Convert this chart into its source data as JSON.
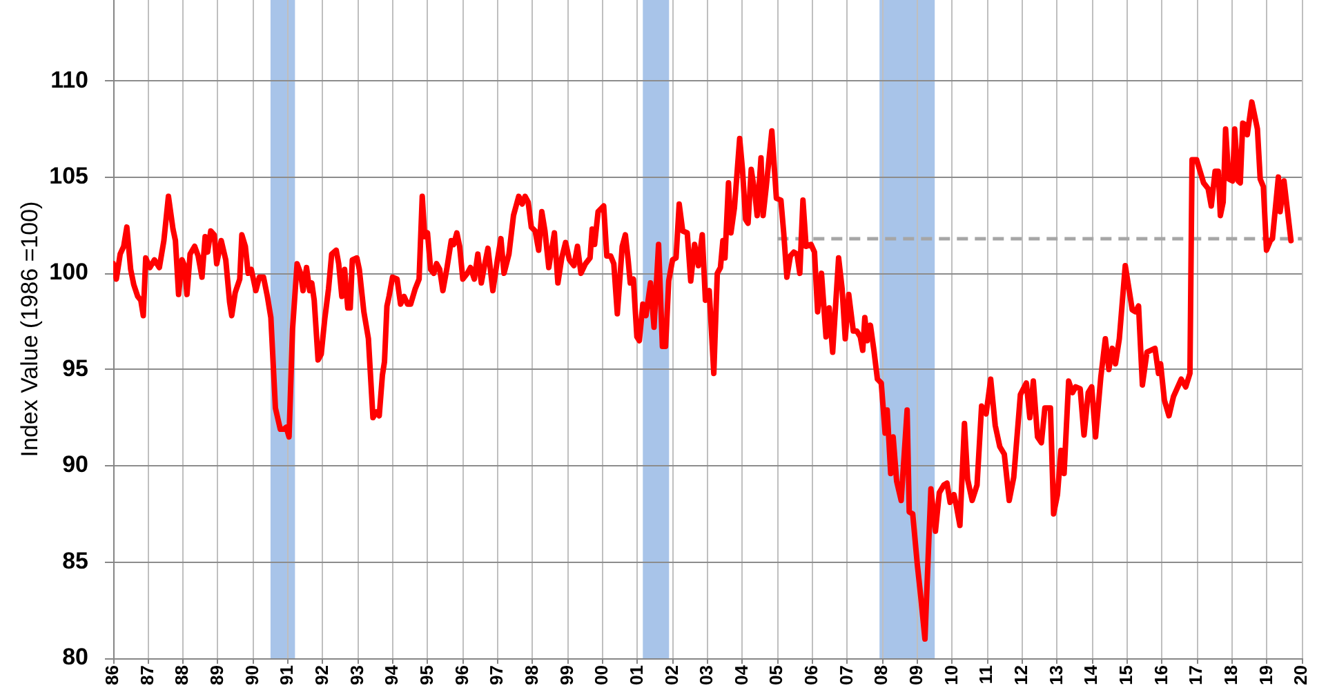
{
  "chart_data": {
    "type": "line",
    "ylabel": "Index Value (1986 =100)",
    "xlim": [
      1986,
      2020
    ],
    "xticks": [
      {
        "value": 1986,
        "label": "86"
      },
      {
        "value": 1987,
        "label": "87"
      },
      {
        "value": 1988,
        "label": "88"
      },
      {
        "value": 1989,
        "label": "89"
      },
      {
        "value": 1990,
        "label": "90"
      },
      {
        "value": 1991,
        "label": "91"
      },
      {
        "value": 1992,
        "label": "92"
      },
      {
        "value": 1993,
        "label": "93"
      },
      {
        "value": 1994,
        "label": "94"
      },
      {
        "value": 1995,
        "label": "95"
      },
      {
        "value": 1996,
        "label": "96"
      },
      {
        "value": 1997,
        "label": "97"
      },
      {
        "value": 1998,
        "label": "98"
      },
      {
        "value": 1999,
        "label": "99"
      },
      {
        "value": 2000,
        "label": "00"
      },
      {
        "value": 2001,
        "label": "01"
      },
      {
        "value": 2002,
        "label": "02"
      },
      {
        "value": 2003,
        "label": "03"
      },
      {
        "value": 2004,
        "label": "04"
      },
      {
        "value": 2005,
        "label": "05"
      },
      {
        "value": 2006,
        "label": "06"
      },
      {
        "value": 2007,
        "label": "07"
      },
      {
        "value": 2008,
        "label": "08"
      },
      {
        "value": 2009,
        "label": "09"
      },
      {
        "value": 2010,
        "label": "10"
      },
      {
        "value": 2011,
        "label": "11"
      },
      {
        "value": 2012,
        "label": "12"
      },
      {
        "value": 2013,
        "label": "13"
      },
      {
        "value": 2014,
        "label": "14"
      },
      {
        "value": 2015,
        "label": "15"
      },
      {
        "value": 2016,
        "label": "16"
      },
      {
        "value": 2017,
        "label": "17"
      },
      {
        "value": 2018,
        "label": "18"
      },
      {
        "value": 2019,
        "label": "19"
      },
      {
        "value": 2020,
        "label": "20"
      }
    ],
    "ylim": [
      80,
      114.2
    ],
    "yticks": [
      80,
      85,
      90,
      95,
      100,
      105,
      110
    ],
    "grid": true,
    "marker": "none",
    "line_style": "solid",
    "bands": [
      {
        "axis": "x",
        "from": 1990.5,
        "to": 1991.2,
        "color": "#a8c4e9"
      },
      {
        "axis": "x",
        "from": 2001.15,
        "to": 2001.9,
        "color": "#a8c4e9"
      },
      {
        "axis": "x",
        "from": 2007.92,
        "to": 2009.5,
        "color": "#a8c4e9"
      }
    ],
    "series": [
      {
        "color": "#ff0000",
        "x": [
          1986.0,
          1986.09,
          1986.2,
          1986.3,
          1986.39,
          1986.5,
          1986.59,
          1986.7,
          1986.79,
          1986.86,
          1986.93,
          1987.05,
          1987.18,
          1987.32,
          1987.45,
          1987.58,
          1987.71,
          1987.78,
          1987.87,
          1987.97,
          1988.04,
          1988.11,
          1988.2,
          1988.33,
          1988.43,
          1988.54,
          1988.63,
          1988.7,
          1988.79,
          1988.89,
          1988.96,
          1989.09,
          1989.22,
          1989.33,
          1989.39,
          1989.49,
          1989.62,
          1989.68,
          1989.78,
          1989.86,
          1989.95,
          1990.08,
          1990.18,
          1990.3,
          1990.41,
          1990.51,
          1990.64,
          1990.78,
          1990.88,
          1990.95,
          1991.03,
          1991.13,
          1991.26,
          1991.36,
          1991.43,
          1991.53,
          1991.62,
          1991.68,
          1991.75,
          1991.86,
          1991.95,
          1992.05,
          1992.16,
          1992.25,
          1992.38,
          1992.45,
          1992.54,
          1992.62,
          1992.71,
          1992.78,
          1992.84,
          1992.97,
          1993.04,
          1993.17,
          1993.3,
          1993.43,
          1993.53,
          1993.61,
          1993.7,
          1993.76,
          1993.83,
          1993.89,
          1993.99,
          1994.12,
          1994.22,
          1994.32,
          1994.42,
          1994.51,
          1994.64,
          1994.75,
          1994.84,
          1994.91,
          1994.99,
          1995.08,
          1995.17,
          1995.25,
          1995.34,
          1995.43,
          1995.54,
          1995.67,
          1995.74,
          1995.83,
          1995.91,
          1996.0,
          1996.13,
          1996.22,
          1996.33,
          1996.43,
          1996.53,
          1996.62,
          1996.72,
          1996.86,
          1996.99,
          1997.09,
          1997.18,
          1997.32,
          1997.45,
          1997.6,
          1997.7,
          1997.78,
          1997.87,
          1997.96,
          1998.07,
          1998.17,
          1998.26,
          1998.35,
          1998.46,
          1998.62,
          1998.72,
          1998.83,
          1998.94,
          1999.05,
          1999.18,
          1999.28,
          1999.38,
          1999.51,
          1999.64,
          1999.7,
          1999.77,
          1999.87,
          2000.03,
          2000.12,
          2000.23,
          2000.32,
          2000.42,
          2000.56,
          2000.65,
          2000.73,
          2000.79,
          2000.88,
          2000.98,
          2001.05,
          2001.15,
          2001.24,
          2001.37,
          2001.47,
          2001.6,
          2001.71,
          2001.8,
          2001.89,
          2002.0,
          2002.1,
          2002.19,
          2002.29,
          2002.42,
          2002.52,
          2002.63,
          2002.74,
          2002.85,
          2002.94,
          2003.05,
          2003.18,
          2003.28,
          2003.37,
          2003.44,
          2003.5,
          2003.6,
          2003.67,
          2003.77,
          2003.92,
          2004.0,
          2004.09,
          2004.16,
          2004.25,
          2004.36,
          2004.42,
          2004.53,
          2004.59,
          2004.68,
          2004.84,
          2004.97,
          2005.1,
          2005.18,
          2005.27,
          2005.37,
          2005.47,
          2005.56,
          2005.64,
          2005.73,
          2005.82,
          2005.96,
          2006.06,
          2006.15,
          2006.26,
          2006.39,
          2006.48,
          2006.58,
          2006.75,
          2006.85,
          2006.94,
          2007.04,
          2007.17,
          2007.27,
          2007.37,
          2007.44,
          2007.5,
          2007.57,
          2007.66,
          2007.76,
          2007.86,
          2007.97,
          2008.08,
          2008.14,
          2008.24,
          2008.31,
          2008.41,
          2008.54,
          2008.71,
          2008.77,
          2008.87,
          2009.0,
          2009.1,
          2009.22,
          2009.33,
          2009.39,
          2009.52,
          2009.63,
          2009.76,
          2009.85,
          2009.94,
          2010.05,
          2010.11,
          2010.22,
          2010.35,
          2010.44,
          2010.57,
          2010.71,
          2010.84,
          2010.97,
          2011.1,
          2011.23,
          2011.36,
          2011.49,
          2011.63,
          2011.76,
          2011.95,
          2012.12,
          2012.22,
          2012.32,
          2012.44,
          2012.55,
          2012.65,
          2012.81,
          2012.9,
          2013.01,
          2013.11,
          2013.2,
          2013.33,
          2013.44,
          2013.53,
          2013.66,
          2013.77,
          2013.89,
          2013.99,
          2014.1,
          2014.25,
          2014.38,
          2014.48,
          2014.58,
          2014.67,
          2014.78,
          2014.95,
          2015.15,
          2015.24,
          2015.33,
          2015.44,
          2015.57,
          2015.8,
          2015.9,
          2015.96,
          2016.07,
          2016.2,
          2016.33,
          2016.55,
          2016.68,
          2016.8,
          2016.86,
          2016.99,
          2017.19,
          2017.32,
          2017.41,
          2017.52,
          2017.61,
          2017.67,
          2017.75,
          2017.82,
          2017.91,
          2018.02,
          2018.08,
          2018.18,
          2018.24,
          2018.31,
          2018.4,
          2018.44,
          2018.57,
          2018.73,
          2018.81,
          2018.9,
          2018.99,
          2019.1,
          2019.16,
          2019.33,
          2019.38,
          2019.49,
          2019.69
        ],
        "values": [
          100.5,
          99.7,
          101.0,
          101.4,
          102.4,
          100.2,
          99.4,
          98.8,
          98.6,
          97.8,
          100.8,
          100.3,
          100.7,
          100.3,
          101.7,
          104.0,
          102.3,
          101.7,
          98.9,
          100.7,
          100.4,
          98.9,
          101.0,
          101.4,
          100.9,
          99.8,
          101.9,
          101.1,
          102.2,
          102.0,
          100.5,
          101.7,
          100.7,
          98.5,
          97.8,
          99.0,
          99.7,
          102.0,
          101.4,
          100.0,
          100.2,
          99.1,
          99.8,
          99.8,
          98.8,
          97.7,
          93.0,
          91.9,
          91.9,
          92.0,
          91.5,
          97.1,
          100.5,
          100.0,
          99.1,
          100.3,
          99.1,
          99.5,
          98.6,
          95.5,
          95.8,
          97.6,
          99.2,
          101.0,
          101.2,
          100.5,
          98.8,
          100.2,
          98.2,
          98.2,
          100.7,
          100.8,
          100.2,
          98.0,
          96.6,
          92.5,
          92.8,
          92.6,
          94.7,
          95.4,
          98.3,
          98.8,
          99.8,
          99.7,
          98.4,
          98.8,
          98.4,
          98.4,
          99.2,
          99.7,
          104.0,
          101.9,
          102.1,
          100.2,
          100.0,
          100.5,
          100.2,
          99.1,
          100.2,
          101.7,
          101.5,
          102.1,
          101.4,
          99.7,
          100.0,
          100.3,
          99.7,
          101.0,
          99.5,
          100.4,
          101.3,
          99.1,
          100.7,
          101.8,
          100.0,
          101.0,
          103.0,
          104.0,
          103.6,
          104.0,
          103.7,
          102.4,
          102.2,
          101.2,
          103.2,
          102.2,
          100.3,
          102.1,
          99.5,
          100.8,
          101.6,
          100.7,
          100.4,
          101.4,
          100.0,
          100.5,
          100.8,
          102.3,
          101.5,
          103.2,
          103.5,
          100.9,
          100.9,
          100.5,
          97.9,
          101.4,
          102.0,
          100.7,
          99.5,
          99.7,
          96.7,
          96.5,
          98.4,
          97.8,
          99.5,
          97.2,
          101.5,
          96.2,
          96.2,
          99.6,
          100.7,
          100.8,
          103.6,
          102.2,
          102.1,
          99.6,
          101.5,
          100.4,
          102.0,
          98.6,
          99.1,
          94.8,
          100.0,
          100.3,
          101.7,
          100.8,
          104.7,
          102.1,
          103.4,
          107.0,
          105.4,
          102.8,
          102.6,
          105.4,
          104.1,
          103.0,
          106.0,
          103.0,
          104.5,
          107.4,
          103.9,
          103.8,
          102.1,
          99.8,
          100.9,
          101.1,
          101.0,
          100.0,
          103.8,
          101.4,
          101.5,
          101.1,
          98.0,
          100.0,
          96.7,
          98.2,
          95.9,
          100.8,
          99.2,
          96.6,
          98.9,
          97.0,
          97.0,
          96.7,
          96.0,
          97.7,
          96.5,
          97.3,
          96.0,
          94.5,
          94.3,
          91.7,
          92.9,
          89.6,
          91.5,
          89.2,
          88.2,
          92.9,
          87.6,
          87.5,
          84.9,
          83.2,
          81.0,
          86.1,
          88.8,
          86.6,
          88.6,
          89.0,
          89.1,
          88.1,
          88.5,
          88.0,
          86.9,
          92.2,
          89.3,
          88.2,
          89.0,
          93.1,
          92.7,
          94.5,
          92.1,
          91.0,
          90.6,
          88.2,
          89.4,
          93.7,
          94.3,
          92.5,
          94.4,
          91.5,
          91.2,
          93.0,
          93.0,
          87.5,
          88.5,
          90.8,
          89.6,
          94.4,
          93.8,
          94.1,
          94.0,
          91.6,
          93.8,
          94.1,
          91.5,
          94.6,
          96.6,
          95.0,
          96.1,
          95.3,
          96.6,
          100.4,
          98.1,
          98.0,
          98.3,
          94.2,
          95.9,
          96.1,
          94.8,
          95.3,
          93.4,
          92.6,
          93.6,
          94.5,
          94.1,
          94.8,
          105.9,
          105.9,
          104.7,
          104.4,
          103.5,
          105.3,
          105.3,
          103.0,
          103.7,
          107.5,
          104.9,
          104.8,
          107.5,
          104.8,
          104.7,
          107.8,
          107.7,
          107.2,
          108.9,
          107.5,
          104.9,
          104.5,
          101.2,
          101.7,
          101.8,
          105.0,
          103.2,
          104.8,
          101.7
        ]
      },
      {
        "type": "line",
        "color": "#a6a6a6",
        "line_style": "dashed",
        "x": [
          2005,
          2020
        ],
        "values": [
          101.8,
          101.8
        ]
      }
    ]
  }
}
